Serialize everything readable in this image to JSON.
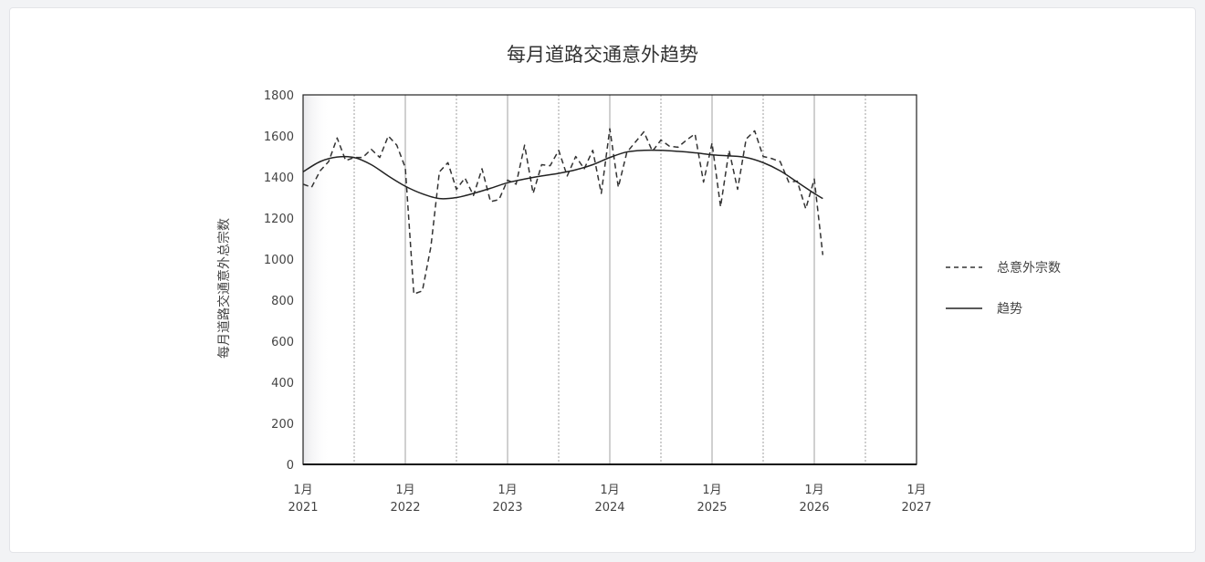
{
  "chart_data": {
    "type": "line",
    "title": "每月道路交通意外趋势",
    "xlabel": "",
    "ylabel": "每月道路交通意外总宗数",
    "ylim": [
      0,
      1800
    ],
    "xlim": [
      "2021-01",
      "2027-01"
    ],
    "y_ticks": [
      0,
      200,
      400,
      600,
      800,
      1000,
      1200,
      1400,
      1600,
      1800
    ],
    "x_ticks": [
      {
        "month": "1月",
        "year": "2021"
      },
      {
        "month": "1月",
        "year": "2022"
      },
      {
        "month": "1月",
        "year": "2023"
      },
      {
        "month": "1月",
        "year": "2024"
      },
      {
        "month": "1月",
        "year": "2025"
      },
      {
        "month": "1月",
        "year": "2026"
      },
      {
        "month": "1月",
        "year": "2027"
      }
    ],
    "legend_position": "right",
    "series": [
      {
        "name": "总意外宗数",
        "style": "dashed",
        "color": "#333333",
        "x": [
          "2021-01",
          "2021-02",
          "2021-03",
          "2021-04",
          "2021-05",
          "2021-06",
          "2021-07",
          "2021-08",
          "2021-09",
          "2021-10",
          "2021-11",
          "2021-12",
          "2022-01",
          "2022-02",
          "2022-03",
          "2022-04",
          "2022-05",
          "2022-06",
          "2022-07",
          "2022-08",
          "2022-09",
          "2022-10",
          "2022-11",
          "2022-12",
          "2023-01",
          "2023-02",
          "2023-03",
          "2023-04",
          "2023-05",
          "2023-06",
          "2023-07",
          "2023-08",
          "2023-09",
          "2023-10",
          "2023-11",
          "2023-12",
          "2024-01",
          "2024-02",
          "2024-03",
          "2024-04",
          "2024-05",
          "2024-06",
          "2024-07",
          "2024-08",
          "2024-09",
          "2024-10",
          "2024-11",
          "2024-12",
          "2025-01",
          "2025-02",
          "2025-03",
          "2025-04",
          "2025-05",
          "2025-06",
          "2025-07",
          "2025-08",
          "2025-09",
          "2025-10",
          "2025-11",
          "2025-12",
          "2026-01",
          "2026-02"
        ],
        "values": [
          1365,
          1350,
          1430,
          1475,
          1590,
          1480,
          1495,
          1495,
          1535,
          1495,
          1600,
          1555,
          1445,
          830,
          845,
          1060,
          1425,
          1470,
          1340,
          1395,
          1310,
          1440,
          1280,
          1290,
          1385,
          1365,
          1555,
          1320,
          1460,
          1455,
          1530,
          1405,
          1500,
          1440,
          1530,
          1320,
          1635,
          1350,
          1520,
          1570,
          1620,
          1525,
          1580,
          1550,
          1545,
          1580,
          1610,
          1375,
          1565,
          1255,
          1530,
          1340,
          1585,
          1625,
          1500,
          1490,
          1475,
          1375,
          1380,
          1245,
          1390,
          1020
        ]
      },
      {
        "name": "趋势",
        "style": "solid",
        "color": "#222222",
        "x": [
          "2021-01",
          "2021-03",
          "2021-05",
          "2021-07",
          "2021-09",
          "2021-11",
          "2022-01",
          "2022-03",
          "2022-05",
          "2022-07",
          "2022-09",
          "2022-11",
          "2023-01",
          "2023-03",
          "2023-05",
          "2023-07",
          "2023-09",
          "2023-11",
          "2024-01",
          "2024-03",
          "2024-05",
          "2024-07",
          "2024-09",
          "2024-11",
          "2025-01",
          "2025-03",
          "2025-05",
          "2025-07",
          "2025-09",
          "2025-11",
          "2026-01",
          "2026-02"
        ],
        "values": [
          1425,
          1475,
          1497,
          1495,
          1460,
          1405,
          1355,
          1318,
          1295,
          1300,
          1320,
          1345,
          1372,
          1390,
          1405,
          1418,
          1435,
          1460,
          1495,
          1522,
          1530,
          1530,
          1525,
          1518,
          1508,
          1503,
          1495,
          1470,
          1430,
          1375,
          1320,
          1295
        ]
      }
    ]
  }
}
